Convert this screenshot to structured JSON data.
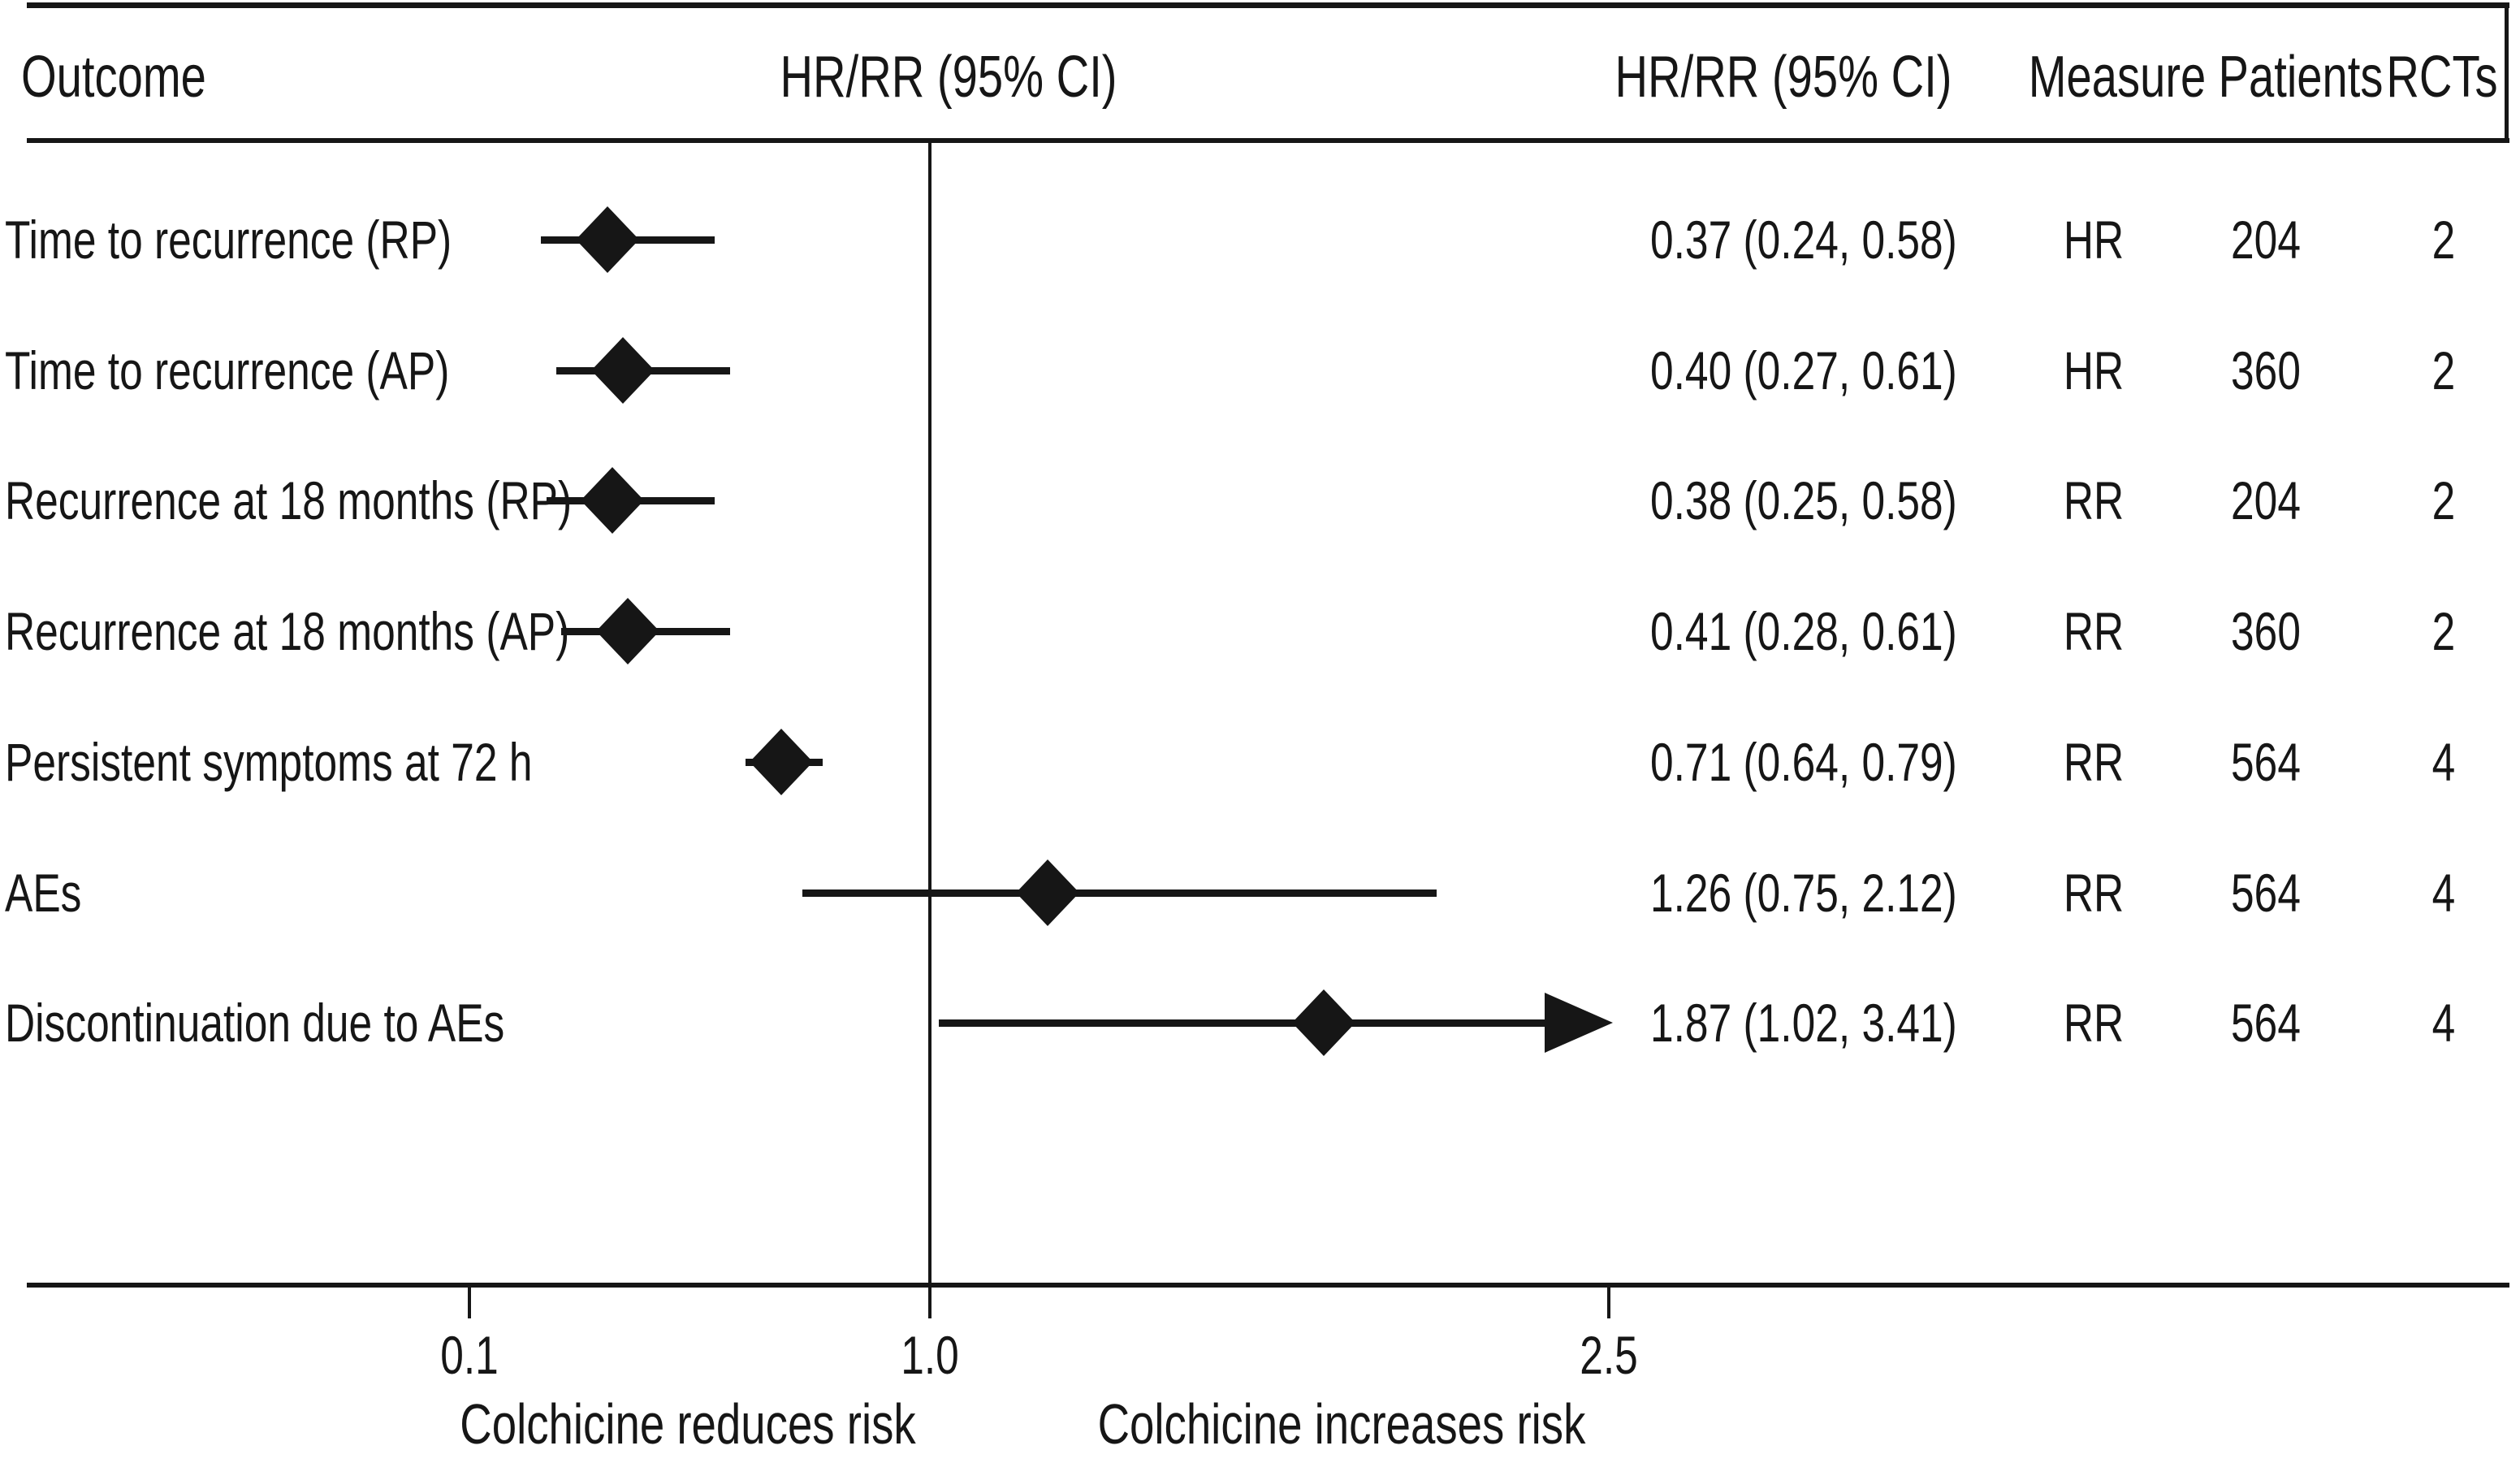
{
  "header": {
    "outcome": "Outcome",
    "hr_rr_plot": "HR/RR (95% CI)",
    "hr_rr_value": "HR/RR (95% CI)",
    "measure": "Measure",
    "patients": "Patients",
    "rcts": "RCTs"
  },
  "chart_data": {
    "type": "scatter",
    "subtype": "forest_plot",
    "x_axis": {
      "ticks": [
        {
          "value": 0.1,
          "label": "0.1"
        },
        {
          "value": 1.0,
          "label": "1.0"
        },
        {
          "value": 2.5,
          "label": "2.5"
        }
      ],
      "reference_line_value": 1.0,
      "region_labels": {
        "left_of_1": "Colchicine reduces risk",
        "right_of_1": "Colchicine increases risk"
      }
    },
    "rows": [
      {
        "outcome": "Time to recurrence (RP)",
        "estimate": 0.37,
        "ci_low": 0.24,
        "ci_high": 0.58,
        "ci_text": "0.37 (0.24, 0.58)",
        "measure": "HR",
        "patients": "204",
        "rcts": "2",
        "arrow_right": false
      },
      {
        "outcome": "Time to recurrence (AP)",
        "estimate": 0.4,
        "ci_low": 0.27,
        "ci_high": 0.61,
        "ci_text": "0.40 (0.27, 0.61)",
        "measure": "HR",
        "patients": "360",
        "rcts": "2",
        "arrow_right": false
      },
      {
        "outcome": "Recurrence at 18 months (RP)",
        "estimate": 0.38,
        "ci_low": 0.25,
        "ci_high": 0.58,
        "ci_text": "0.38 (0.25, 0.58)",
        "measure": "RR",
        "patients": "204",
        "rcts": "2",
        "arrow_right": false
      },
      {
        "outcome": "Recurrence at 18 months (AP)",
        "estimate": 0.41,
        "ci_low": 0.28,
        "ci_high": 0.61,
        "ci_text": "0.41 (0.28, 0.61)",
        "measure": "RR",
        "patients": "360",
        "rcts": "2",
        "arrow_right": false
      },
      {
        "outcome": "Persistent symptoms at 72 h",
        "estimate": 0.71,
        "ci_low": 0.64,
        "ci_high": 0.79,
        "ci_text": "0.71 (0.64, 0.79)",
        "measure": "RR",
        "patients": "564",
        "rcts": "4",
        "arrow_right": false
      },
      {
        "outcome": "AEs",
        "estimate": 1.26,
        "ci_low": 0.75,
        "ci_high": 2.12,
        "ci_text": "1.26 (0.75, 2.12)",
        "measure": "RR",
        "patients": "564",
        "rcts": "4",
        "arrow_right": false
      },
      {
        "outcome": "Discontinuation due to AEs",
        "estimate": 1.87,
        "ci_low": 1.02,
        "ci_high": 3.41,
        "ci_text": "1.87 (1.02, 3.41)",
        "measure": "RR",
        "patients": "564",
        "rcts": "4",
        "arrow_right": true
      }
    ]
  }
}
